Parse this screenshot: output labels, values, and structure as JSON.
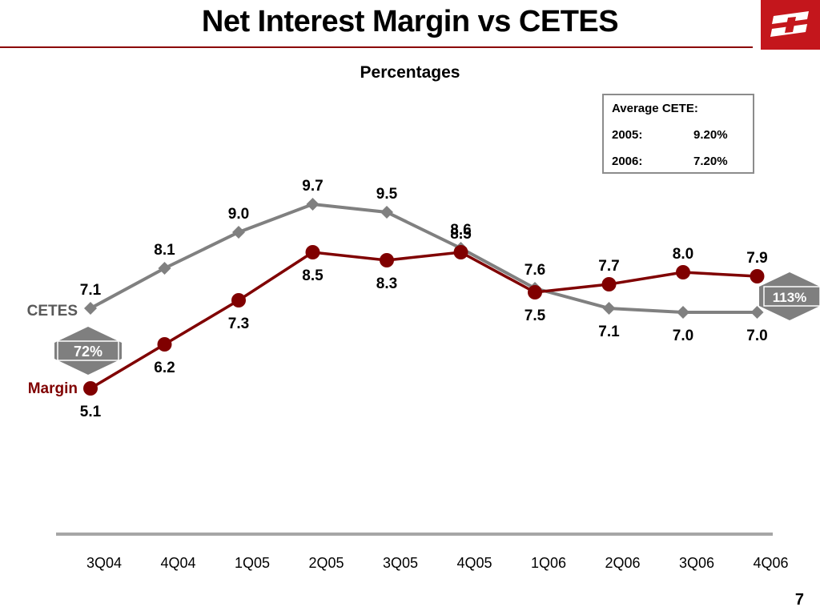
{
  "page": {
    "title": "Net Interest Margin vs CETES",
    "page_number": "7"
  },
  "logo": {
    "icon": "bank-logo-icon",
    "color": "#c4161c"
  },
  "cete_box": {
    "heading": "Average CETE:",
    "rows": [
      {
        "year": "2005:",
        "value": "9.20%"
      },
      {
        "year": "2006:",
        "value": "7.20%"
      }
    ]
  },
  "badges": {
    "cetes_growth": "72%",
    "margin_growth": "113%"
  },
  "chart_data": {
    "type": "line",
    "title": "Percentages",
    "xlabel": "",
    "ylabel": "",
    "categories": [
      "3Q04",
      "4Q04",
      "1Q05",
      "2Q05",
      "3Q05",
      "4Q05",
      "1Q06",
      "2Q06",
      "3Q06",
      "4Q06"
    ],
    "series": [
      {
        "name": "CETES",
        "color": "#808080",
        "marker": "diamond",
        "values": [
          7.1,
          8.1,
          9.0,
          9.7,
          9.5,
          8.6,
          7.6,
          7.1,
          7.0,
          7.0
        ],
        "labels": [
          "7.1",
          "8.1",
          "9.0",
          "9.7",
          "9.5",
          "8.6",
          "7.6",
          "7.1",
          "7.0",
          "7.0"
        ]
      },
      {
        "name": "Margin",
        "color": "#800000",
        "marker": "circle",
        "values": [
          5.1,
          6.2,
          7.3,
          8.5,
          8.3,
          8.5,
          7.5,
          7.7,
          8.0,
          7.9
        ],
        "labels": [
          "5.1",
          "6.2",
          "7.3",
          "8.5",
          "8.3",
          "8.5",
          "7.5",
          "7.7",
          "8.0",
          "7.9"
        ]
      }
    ],
    "grid": false,
    "legend": "inline-left"
  }
}
